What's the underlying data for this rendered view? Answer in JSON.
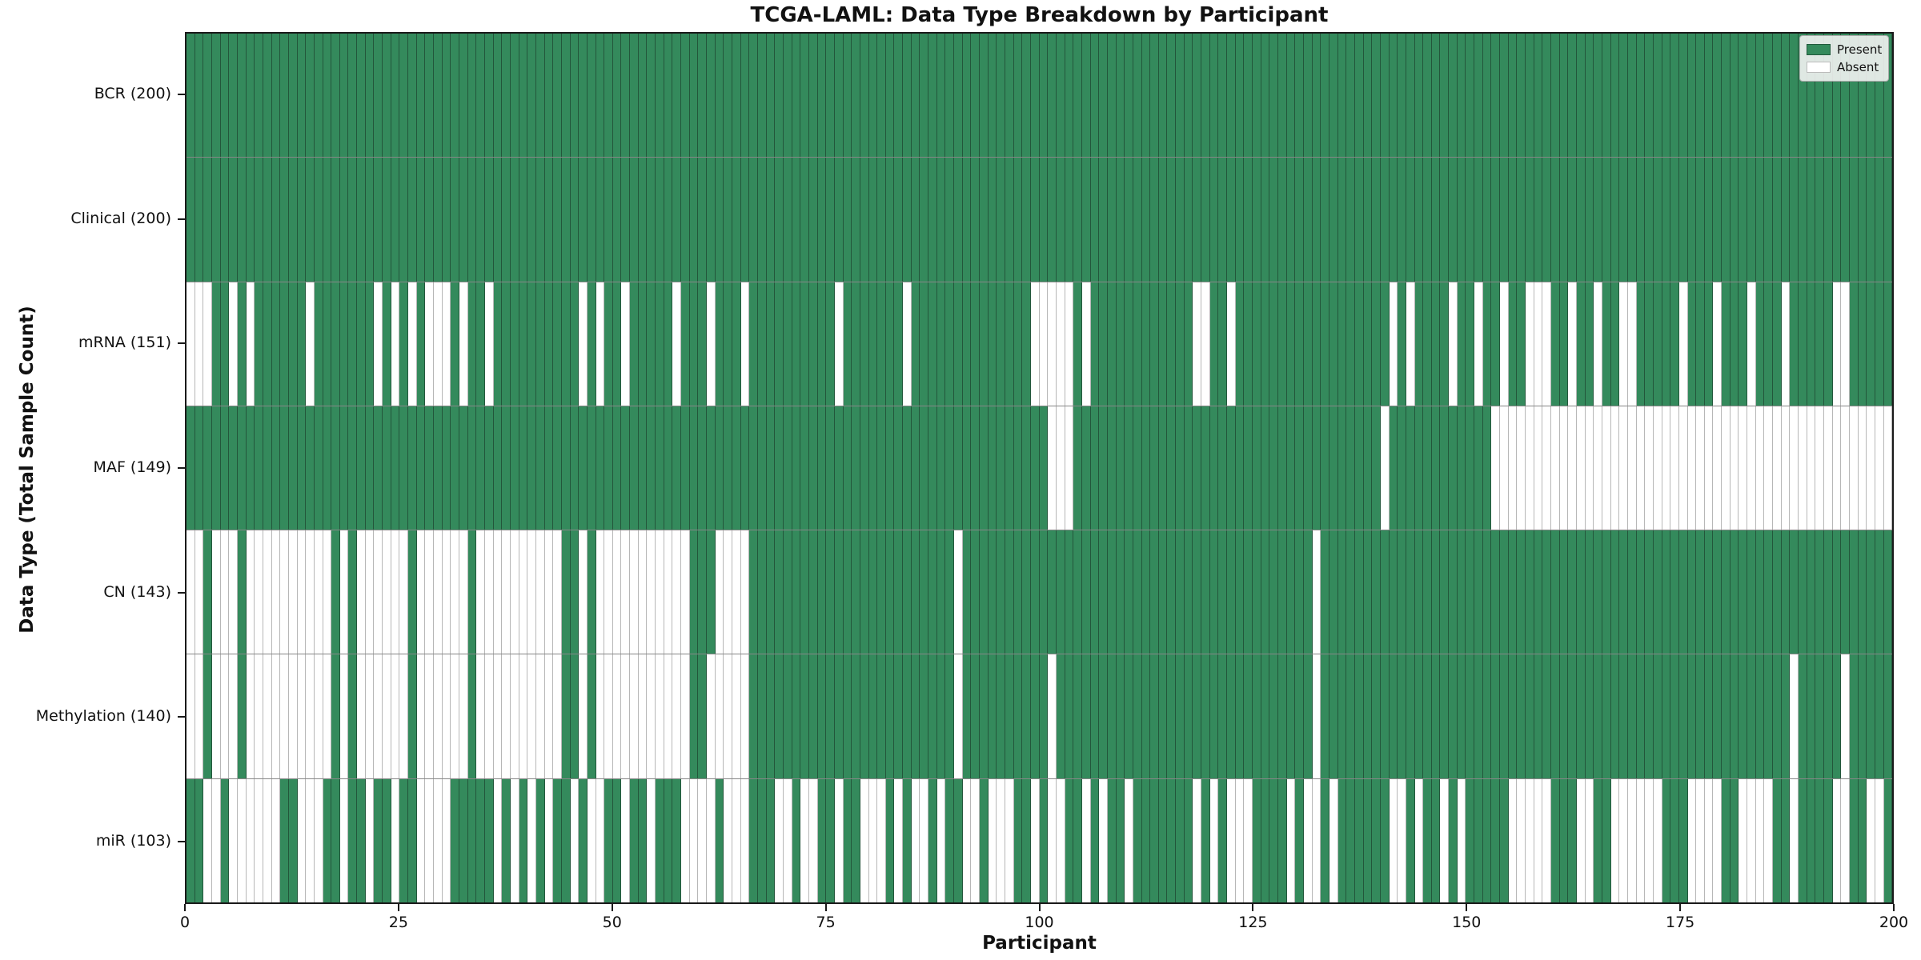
{
  "title": "TCGA-LAML: Data Type Breakdown by Participant",
  "xlabel": "Participant",
  "ylabel": "Data Type (Total Sample Count)",
  "legend": {
    "present_label": "Present",
    "absent_label": "Absent"
  },
  "colors": {
    "present": "#348a5c",
    "absent": "#ffffff"
  },
  "chart_data": {
    "type": "heatmap",
    "title": "TCGA-LAML: Data Type Breakdown by Participant",
    "xlabel": "Participant",
    "ylabel": "Data Type (Total Sample Count)",
    "x_range": [
      0,
      200
    ],
    "x_ticks": [
      0,
      25,
      50,
      75,
      100,
      125,
      150,
      175,
      200
    ],
    "n_participants": 200,
    "legend_position": "upper right",
    "legend_entries": [
      "Present",
      "Absent"
    ],
    "cell_values": "1 = Present (green), 0 = Absent (white); one char per participant 0-199",
    "rows": [
      {
        "label": "BCR (200)",
        "name": "BCR",
        "present_count": 200,
        "pattern": "11111111111111111111111111111111111111111111111111111111111111111111111111111111111111111111111111111111111111111111111111111111111111111111111111111111111111111111111111111111111111111111111111111111"
      },
      {
        "label": "Clinical (200)",
        "name": "Clinical",
        "present_count": 200,
        "pattern": "11111111111111111111111111111111111111111111111111111111111111111111111111111111111111111111111111111111111111111111111111111111111111111111111111111111111111111111111111111111111111111111111111111111"
      },
      {
        "label": "mRNA (151)",
        "name": "mRNA",
        "present_count": 151,
        "pattern": "00011010111111011111110101010001011011111111110101101111101110111011111111110111111101111111111111100000101111111111110011011111111111111111101011110110110110001101101100111110111011101110111110011111"
      },
      {
        "label": "MAF (149)",
        "name": "MAF",
        "present_count": 149,
        "pattern": "11111111111111111111111111111111111111111111111111111111111111111111111111111111111111111111111111111000111111111111111111111111111111111111011111111111100000000000000000000000000000000000000000000000"
      },
      {
        "label": "CN (143)",
        "name": "CN",
        "present_count": 143,
        "pattern": "00100010000000000101000000100000010000000000110100000000000111000011111111111111111111111101111111111111111111111111111111111111111101111111111111111111111111111111111111111111111111111111111111111111"
      },
      {
        "label": "Methylation (140)",
        "name": "Methylation",
        "present_count": 140,
        "pattern": "00100010000000000101000000100000010000000000110100000000000110000011111111111111111111111101111111111011111111111111111111111111111101111111111111111111111111111111111111111111111111111111011111011111"
      },
      {
        "label": "miR (103)",
        "name": "miR",
        "present_count": 103,
        "pattern": "11001000000110001101101101100001111101010101101001101101110000100011100100110110001010010110010001101001101011011111110101000111101001011111100101101011111000001110011000000111000011000011011110011001"
      }
    ]
  }
}
